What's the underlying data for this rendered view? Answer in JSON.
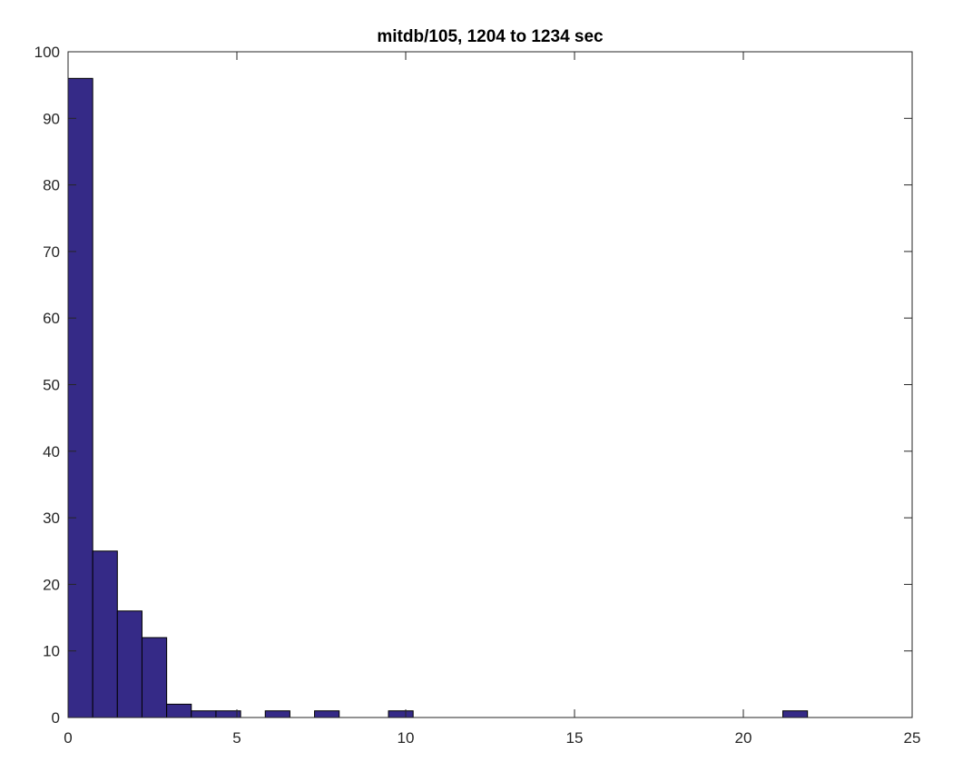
{
  "chart_data": {
    "type": "bar",
    "title": "mitdb/105, 1204 to 1234 sec",
    "xlabel": "",
    "ylabel": "",
    "xlim": [
      0,
      25
    ],
    "ylim": [
      0,
      100
    ],
    "xticks": [
      0,
      5,
      10,
      15,
      20,
      25
    ],
    "yticks": [
      0,
      10,
      20,
      30,
      40,
      50,
      60,
      70,
      80,
      90,
      100
    ],
    "grid": false,
    "bar_color": "#352a87",
    "bar_edge_color": "#000000",
    "bin_width": 0.73,
    "bins": [
      {
        "x0": 0.0,
        "value": 96
      },
      {
        "x0": 0.73,
        "value": 25
      },
      {
        "x0": 1.46,
        "value": 16
      },
      {
        "x0": 2.19,
        "value": 12
      },
      {
        "x0": 2.92,
        "value": 2
      },
      {
        "x0": 3.65,
        "value": 1
      },
      {
        "x0": 4.38,
        "value": 1
      },
      {
        "x0": 5.84,
        "value": 1
      },
      {
        "x0": 7.3,
        "value": 1
      },
      {
        "x0": 9.49,
        "value": 1
      },
      {
        "x0": 21.17,
        "value": 1
      }
    ]
  }
}
